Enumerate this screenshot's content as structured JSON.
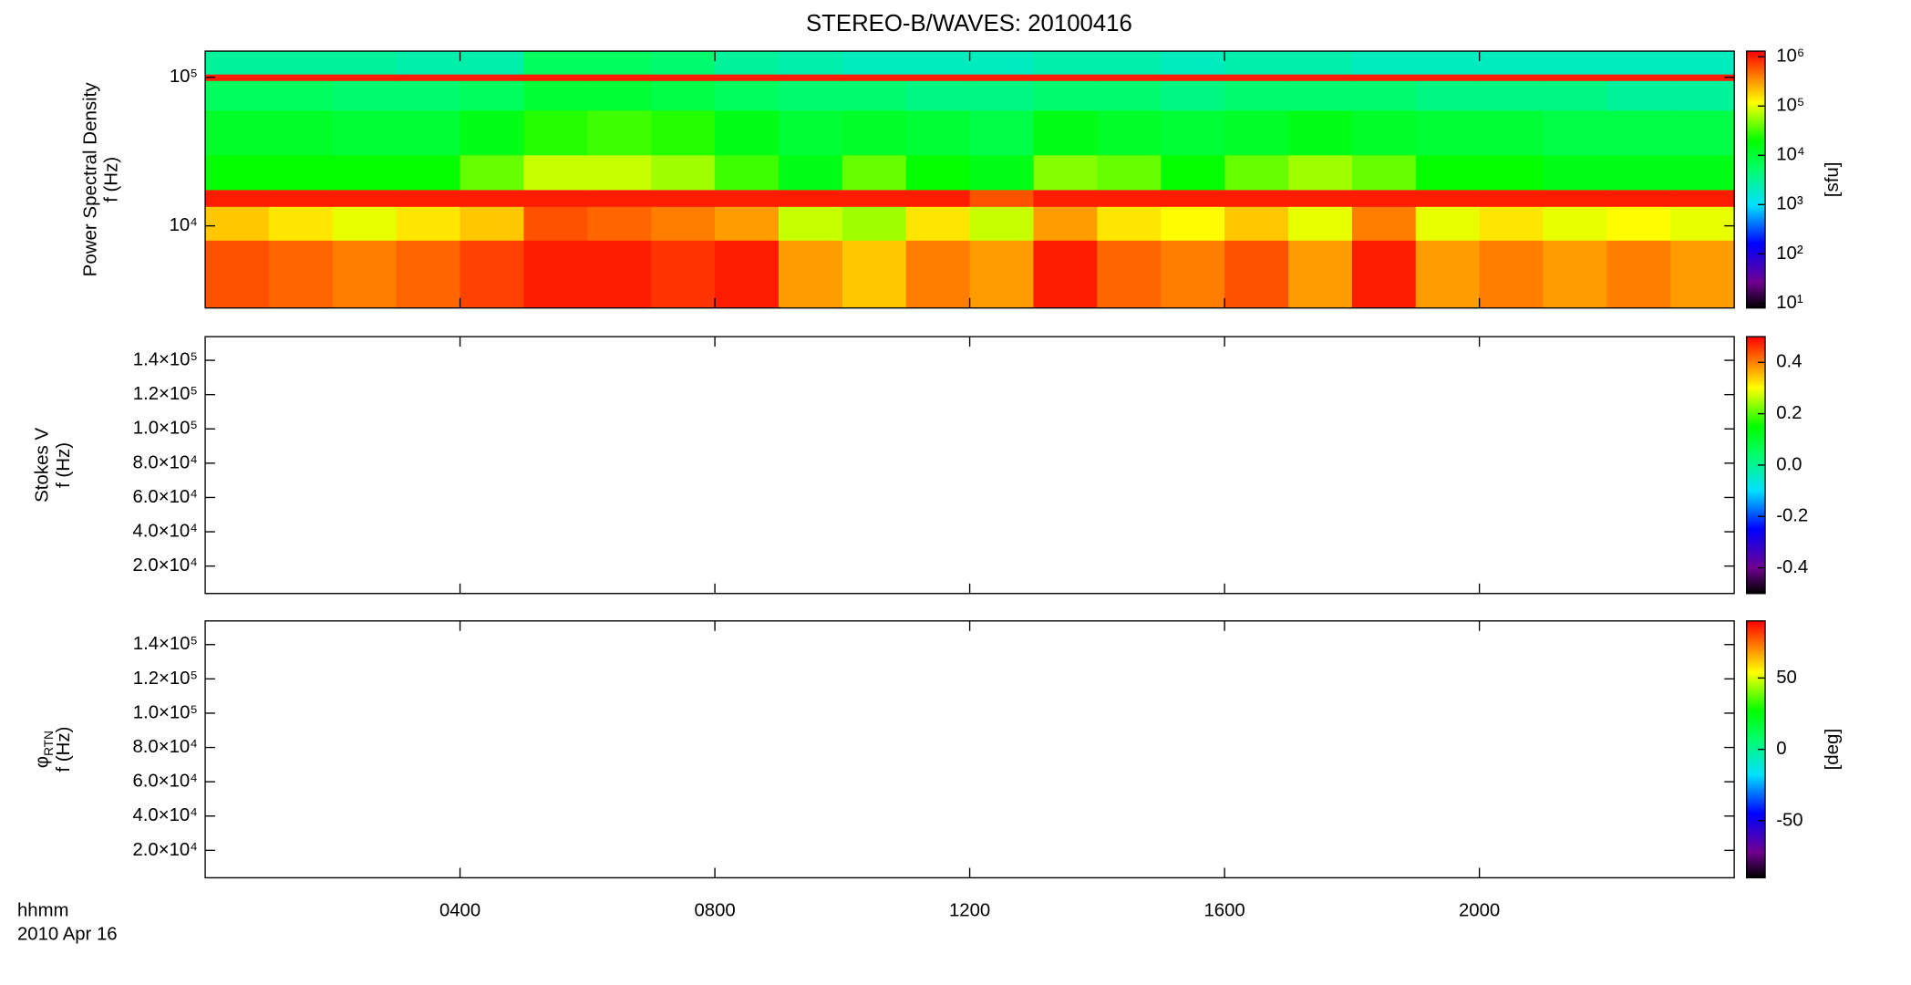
{
  "chart_data": [
    {
      "type": "heatmap",
      "title": "STEREO-B/WAVES: 20100416",
      "ylabel": "Power Spectral Density",
      "ylabel2": "f (Hz)",
      "ylog": true,
      "ylim": [
        2800,
        150000
      ],
      "yticks": [
        {
          "value": 10000,
          "label": "10⁴"
        },
        {
          "value": 100000,
          "label": "10⁵"
        }
      ],
      "xlim": [
        0,
        24
      ],
      "xticks": [
        4,
        8,
        12,
        16,
        20
      ],
      "x_edges": [
        0,
        1,
        2,
        3,
        4,
        5,
        6,
        7,
        8,
        9,
        10,
        11,
        12,
        13,
        14,
        15,
        16,
        17,
        18,
        19,
        20,
        21,
        22,
        23,
        24
      ],
      "y_edges": [
        2800,
        8000,
        13500,
        17500,
        30000,
        60000,
        95000,
        105000,
        150000
      ],
      "values": [
        [
          600000,
          500000,
          400000,
          500000,
          700000,
          1000000,
          1000000,
          800000,
          1000000,
          300000,
          200000,
          400000,
          300000,
          1000000,
          500000,
          400000,
          600000,
          300000,
          1000000,
          300000,
          400000,
          300000,
          400000,
          300000
        ],
        [
          200000,
          150000,
          100000,
          150000,
          200000,
          600000,
          500000,
          400000,
          300000,
          80000,
          60000,
          150000,
          80000,
          300000,
          150000,
          120000,
          200000,
          100000,
          400000,
          100000,
          150000,
          100000,
          120000,
          100000
        ],
        [
          1000000,
          1000000,
          1000000,
          1000000,
          1000000,
          1000000,
          1000000,
          1000000,
          1000000,
          1000000,
          1000000,
          1000000,
          600000,
          1000000,
          1000000,
          1000000,
          1000000,
          1000000,
          1000000,
          1000000,
          1000000,
          1000000,
          1000000,
          1000000
        ],
        [
          20000,
          20000,
          20000,
          20000,
          40000,
          80000,
          80000,
          60000,
          30000,
          15000,
          40000,
          20000,
          15000,
          50000,
          40000,
          20000,
          40000,
          60000,
          40000,
          20000,
          20000,
          15000,
          15000,
          15000
        ],
        [
          12000,
          12000,
          10000,
          10000,
          15000,
          25000,
          30000,
          25000,
          15000,
          10000,
          12000,
          10000,
          8000,
          15000,
          12000,
          10000,
          12000,
          15000,
          12000,
          10000,
          10000,
          8000,
          8000,
          8000
        ],
        [
          6000,
          6000,
          5000,
          5000,
          6000,
          10000,
          10000,
          8000,
          6000,
          5000,
          5000,
          4000,
          4000,
          5000,
          5000,
          4000,
          5000,
          5000,
          5000,
          4000,
          4000,
          4000,
          3000,
          3000
        ],
        [
          1000000,
          1000000,
          1000000,
          1000000,
          1000000,
          1000000,
          1000000,
          1000000,
          1000000,
          1000000,
          1000000,
          1000000,
          1000000,
          1000000,
          1000000,
          1000000,
          1000000,
          1000000,
          1000000,
          1000000,
          1000000,
          1000000,
          1000000,
          1000000
        ],
        [
          3000,
          3000,
          3000,
          2500,
          2500,
          6000,
          6000,
          5000,
          3000,
          2500,
          2000,
          2000,
          2000,
          2500,
          2500,
          2000,
          2500,
          2500,
          2000,
          2000,
          2000,
          2000,
          2000,
          2000
        ]
      ],
      "colormap": "rainbow",
      "colorbar": {
        "log": true,
        "lim": [
          8,
          1300000
        ],
        "label": "[sfu]",
        "ticks": [
          {
            "value": 10,
            "label": "10¹"
          },
          {
            "value": 100,
            "label": "10²"
          },
          {
            "value": 1000,
            "label": "10³"
          },
          {
            "value": 10000,
            "label": "10⁴"
          },
          {
            "value": 100000,
            "label": "10⁵"
          },
          {
            "value": 1000000,
            "label": "10⁶"
          }
        ]
      }
    },
    {
      "type": "heatmap",
      "ylabel": "Stokes V",
      "ylabel2": "f (Hz)",
      "ylog": false,
      "ylim": [
        4000,
        153800
      ],
      "yticks": [
        {
          "value": 20000,
          "label": "2.0×10⁴"
        },
        {
          "value": 40000,
          "label": "4.0×10⁴"
        },
        {
          "value": 60000,
          "label": "6.0×10⁴"
        },
        {
          "value": 80000,
          "label": "8.0×10⁴"
        },
        {
          "value": 100000,
          "label": "1.0×10⁵"
        },
        {
          "value": 120000,
          "label": "1.2×10⁵"
        },
        {
          "value": 140000,
          "label": "1.4×10⁵"
        }
      ],
      "xlim": [
        0,
        24
      ],
      "xticks": [
        4,
        8,
        12,
        16,
        20
      ],
      "colormap": "rainbow",
      "colorbar": {
        "log": false,
        "lim": [
          -0.5,
          0.5
        ],
        "ticks": [
          0.4,
          0.2,
          {
            "value": 0,
            "label": "0.0"
          },
          -0.2,
          -0.4
        ]
      }
    },
    {
      "type": "heatmap",
      "ylabel": "φ",
      "ylabel_subscript": "RTN",
      "ylabel2": "f (Hz)",
      "ylog": false,
      "ylim": [
        4000,
        153800
      ],
      "yticks": [
        {
          "value": 20000,
          "label": "2.0×10⁴"
        },
        {
          "value": 40000,
          "label": "4.0×10⁴"
        },
        {
          "value": 60000,
          "label": "6.0×10⁴"
        },
        {
          "value": 80000,
          "label": "8.0×10⁴"
        },
        {
          "value": 100000,
          "label": "1.0×10⁵"
        },
        {
          "value": 120000,
          "label": "1.2×10⁵"
        },
        {
          "value": 140000,
          "label": "1.4×10⁵"
        }
      ],
      "xlim": [
        0,
        24
      ],
      "xticks": [
        {
          "value": 4,
          "label": "0400"
        },
        {
          "value": 8,
          "label": "0800"
        },
        {
          "value": 12,
          "label": "1200"
        },
        {
          "value": 16,
          "label": "1600"
        },
        {
          "value": 20,
          "label": "2000"
        }
      ],
      "xlabel": "hhmm",
      "date": "2010 Apr 16",
      "colormap": "rainbow",
      "colorbar": {
        "log": false,
        "lim": [
          -90,
          90
        ],
        "label": "[deg]",
        "ticks": [
          50,
          0,
          -50
        ]
      }
    }
  ]
}
